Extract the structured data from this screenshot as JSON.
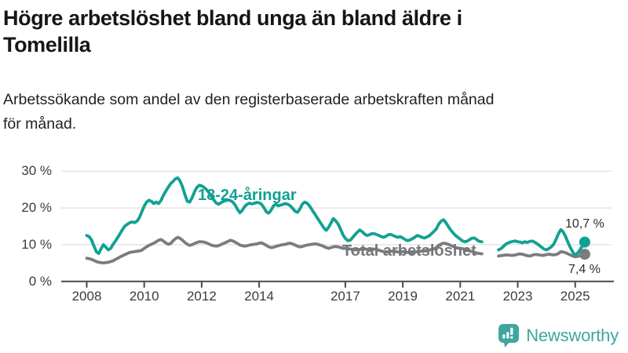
{
  "header": {
    "title_lines": [
      "Högre arbetslöshet bland unga än bland äldre i",
      "Tomelilla"
    ],
    "subtitle_lines": [
      "Arbetssökande som andel av den registerbaserade arbetskraften månad",
      "för månad."
    ]
  },
  "footer": {
    "brand": "Newsworthy"
  },
  "colors": {
    "youth": "#11a192",
    "total": "#7b7c7e",
    "grid": "#e5e5e5",
    "axis": "#4a4a4a",
    "logo": "#3fa69f"
  },
  "chart_data": {
    "type": "line",
    "unit": "percent",
    "x_start_year": 2008,
    "points_per_year": 12,
    "xlim": [
      2007.4,
      2025.9
    ],
    "ylim": [
      0,
      30
    ],
    "grid": "horizontal",
    "y_gridlines": [
      10,
      20,
      30
    ],
    "y_tick_values": [
      30,
      20,
      10,
      0
    ],
    "y_tick_labels": [
      "30 %",
      "20 %",
      "10 %",
      "0 %"
    ],
    "x_ticks": [
      2008,
      2010,
      2012,
      2014,
      2017,
      2019,
      2021,
      2023,
      2025
    ],
    "x_tick_labels": [
      "2008",
      "2010",
      "2012",
      "2014",
      "2017",
      "2019",
      "2021",
      "2023",
      "2025"
    ],
    "data_gap": "2021-11 to 2022-04",
    "series": [
      {
        "name": "18-24-åringar",
        "color": "#11a192",
        "end_label": "10,7 %",
        "end_value": 10.7,
        "values": [
          12.5,
          12.2,
          11.3,
          9.6,
          8.1,
          7.6,
          8.9,
          10.0,
          9.3,
          8.6,
          9.0,
          10.1,
          11.0,
          12.0,
          13.1,
          14.2,
          15.1,
          15.6,
          16.0,
          16.2,
          16.0,
          16.4,
          17.4,
          19.0,
          20.5,
          21.6,
          22.1,
          21.8,
          21.2,
          21.6,
          21.2,
          22.0,
          23.4,
          24.6,
          25.6,
          26.6,
          27.2,
          27.9,
          28.2,
          27.3,
          25.8,
          23.6,
          21.8,
          21.6,
          22.8,
          24.4,
          25.6,
          26.2,
          26.0,
          25.6,
          25.0,
          24.2,
          23.2,
          22.2,
          21.4,
          21.0,
          21.4,
          21.8,
          22.0,
          22.2,
          22.0,
          21.6,
          20.8,
          19.6,
          18.7,
          19.4,
          20.4,
          21.0,
          21.3,
          21.1,
          21.3,
          21.5,
          21.4,
          21.0,
          20.1,
          18.9,
          18.6,
          19.4,
          20.6,
          21.0,
          20.6,
          20.8,
          21.0,
          21.2,
          21.0,
          20.6,
          19.9,
          19.1,
          18.8,
          19.7,
          21.0,
          21.6,
          21.3,
          20.6,
          19.6,
          18.6,
          17.6,
          16.6,
          15.6,
          14.6,
          13.9,
          14.7,
          15.9,
          17.1,
          16.5,
          15.6,
          14.2,
          12.7,
          11.7,
          11.1,
          11.2,
          11.9,
          12.7,
          13.4,
          14.0,
          13.6,
          12.9,
          12.5,
          12.7,
          13.0,
          13.0,
          12.8,
          12.5,
          12.2,
          12.0,
          12.3,
          12.7,
          12.8,
          12.5,
          12.2,
          12.0,
          12.2,
          11.8,
          11.4,
          11.1,
          11.3,
          11.6,
          12.0,
          12.5,
          12.3,
          12.0,
          11.8,
          12.1,
          12.4,
          13.0,
          13.6,
          14.3,
          15.6,
          16.4,
          16.8,
          16.0,
          15.0,
          14.0,
          13.2,
          12.5,
          12.0,
          11.5,
          11.0,
          10.8,
          11.0,
          11.4,
          11.8,
          11.8,
          11.3,
          10.9,
          10.8,
          null,
          null,
          null,
          null,
          null,
          null,
          8.6,
          8.9,
          9.5,
          10.1,
          10.5,
          10.7,
          10.9,
          11.0,
          10.8,
          10.7,
          10.5,
          10.8,
          10.6,
          10.9,
          11.0,
          10.7,
          10.3,
          9.8,
          9.3,
          8.8,
          8.6,
          8.9,
          9.4,
          10.1,
          11.4,
          13.0,
          14.1,
          13.5,
          12.2,
          10.6,
          9.2,
          8.0,
          7.1,
          7.7,
          8.6,
          9.7,
          10.7
        ]
      },
      {
        "name": "Total arbetslöshet",
        "color": "#7b7c7e",
        "end_label": "7,4 %",
        "end_value": 7.4,
        "values": [
          6.3,
          6.2,
          6.0,
          5.7,
          5.4,
          5.2,
          5.1,
          5.0,
          5.1,
          5.2,
          5.4,
          5.6,
          6.0,
          6.3,
          6.7,
          7.0,
          7.3,
          7.6,
          7.9,
          8.0,
          8.1,
          8.2,
          8.3,
          8.5,
          9.0,
          9.4,
          9.8,
          10.1,
          10.4,
          10.8,
          11.2,
          11.4,
          11.0,
          10.5,
          10.1,
          10.3,
          11.0,
          11.6,
          12.0,
          11.7,
          11.2,
          10.6,
          10.1,
          9.8,
          10.0,
          10.3,
          10.6,
          10.8,
          10.8,
          10.7,
          10.5,
          10.2,
          9.9,
          9.7,
          9.6,
          9.7,
          10.0,
          10.3,
          10.6,
          10.9,
          11.2,
          11.0,
          10.7,
          10.3,
          9.9,
          9.7,
          9.6,
          9.7,
          9.9,
          10.0,
          10.1,
          10.2,
          10.4,
          10.5,
          10.2,
          9.8,
          9.4,
          9.2,
          9.3,
          9.5,
          9.7,
          9.9,
          10.0,
          10.1,
          10.3,
          10.4,
          10.2,
          9.9,
          9.6,
          9.4,
          9.5,
          9.7,
          9.9,
          10.0,
          10.1,
          10.2,
          10.2,
          10.0,
          9.8,
          9.5,
          9.2,
          9.0,
          9.2,
          9.4,
          9.5,
          9.4,
          9.2,
          9.0,
          9.0,
          8.9,
          8.8,
          8.7,
          8.6,
          8.6,
          8.7,
          8.8,
          8.8,
          8.7,
          8.7,
          8.8,
          8.8,
          8.7,
          8.5,
          8.3,
          8.1,
          8.0,
          8.1,
          8.2,
          8.2,
          8.1,
          8.0,
          8.0,
          8.1,
          8.0,
          7.9,
          7.8,
          7.8,
          7.9,
          8.1,
          8.2,
          8.2,
          8.3,
          8.4,
          8.5,
          8.7,
          8.8,
          9.2,
          9.8,
          10.2,
          10.4,
          10.3,
          10.1,
          9.8,
          9.5,
          9.2,
          9.1,
          9.0,
          8.9,
          8.7,
          8.5,
          8.3,
          8.1,
          7.9,
          7.7,
          7.6,
          7.5,
          null,
          null,
          null,
          null,
          null,
          null,
          6.9,
          7.0,
          7.1,
          7.2,
          7.2,
          7.1,
          7.1,
          7.2,
          7.4,
          7.5,
          7.4,
          7.2,
          7.0,
          6.9,
          7.1,
          7.3,
          7.3,
          7.2,
          7.1,
          7.1,
          7.3,
          7.4,
          7.3,
          7.2,
          7.3,
          7.6,
          8.1,
          8.0,
          7.8,
          7.5,
          7.2,
          6.9,
          6.7,
          6.8,
          7.0,
          7.2,
          7.4
        ]
      }
    ]
  }
}
